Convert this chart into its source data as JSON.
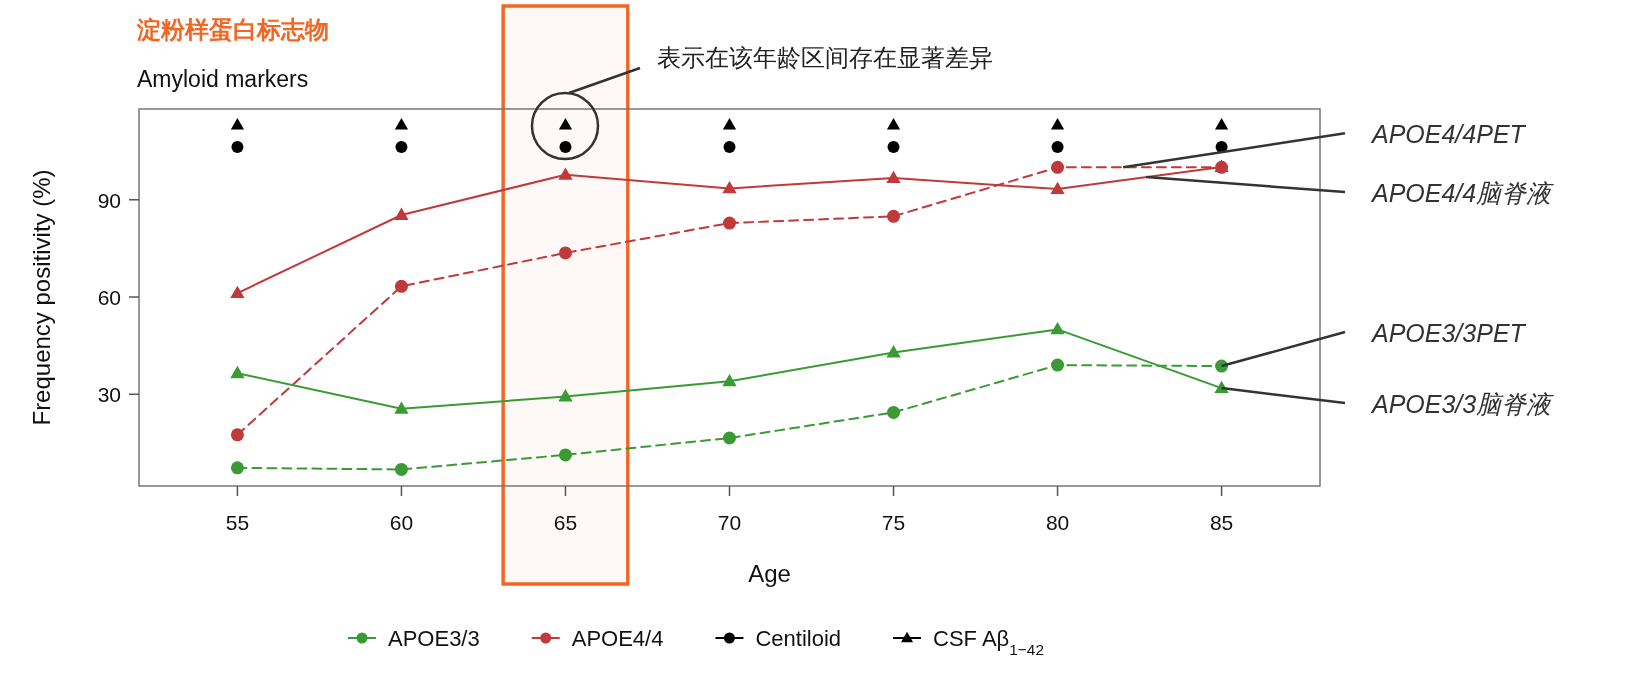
{
  "chart_data": {
    "type": "line",
    "title": "淀粉样蛋白标志物",
    "subtitle": "Amyloid markers",
    "xlabel": "Age",
    "ylabel": "Frequency positivity (%)",
    "x": [
      55,
      60,
      65,
      70,
      75,
      80,
      85
    ],
    "xlim": [
      52,
      88
    ],
    "ylim": [
      1.7,
      118
    ],
    "xticks": [
      55,
      60,
      65,
      70,
      75,
      80,
      85
    ],
    "yticks": [
      30,
      60,
      90
    ],
    "grid": false,
    "legend": "bottom",
    "series": [
      {
        "name": "APOE3/3",
        "color": "#3a9a35",
        "marker": "circle",
        "line_style": "dashed",
        "values": [
          7.3,
          6.8,
          11.3,
          16.5,
          24.4,
          39,
          38.7
        ]
      },
      {
        "name": "APOE4/4",
        "color": "#c0393b",
        "marker": "circle",
        "line_style": "dashed",
        "values": [
          17.5,
          63.3,
          73.6,
          82.8,
          84.9,
          100,
          100
        ]
      },
      {
        "name": "Centiloid",
        "type": "scatter",
        "color": "#000000",
        "marker": "circle",
        "values": [
          106.3,
          106.3,
          106.3,
          106.3,
          106.3,
          106.3,
          106.3
        ]
      },
      {
        "name": "CSF Aβ$_{1−42}$",
        "type": "scatter",
        "color": "#000000",
        "marker": "triangle",
        "values": [
          113.1,
          113.1,
          113.1,
          113.1,
          113.1,
          113.1,
          113.1
        ]
      },
      {
        "color": "#3a9a35",
        "marker": "triangle",
        "line_style": "solid",
        "values": [
          36.5,
          25.5,
          29.3,
          34,
          42.9,
          50,
          31.9
        ]
      },
      {
        "color": "#c0393b",
        "marker": "triangle",
        "line_style": "solid",
        "values": [
          61.2,
          85.3,
          97.7,
          93.5,
          96.7,
          93.3,
          100.1
        ]
      }
    ],
    "annotations": [
      "表示在该年龄区间存在显著差异",
      {
        "text": "APOE4/4PET",
        "x": 82,
        "y": 100
      },
      {
        "text": "APOE4/4脑脊液",
        "x": 82.7,
        "y": 97
      },
      {
        "text": "APOE3/3PET",
        "x": 85,
        "y": 38.7
      },
      {
        "text": "APOE3/3脑脊液",
        "x": 85,
        "y": 31.9
      }
    ],
    "bands": [
      {
        "axis": "x",
        "from": 63.1,
        "to": 66.9,
        "color": "#f26522"
      }
    ]
  }
}
